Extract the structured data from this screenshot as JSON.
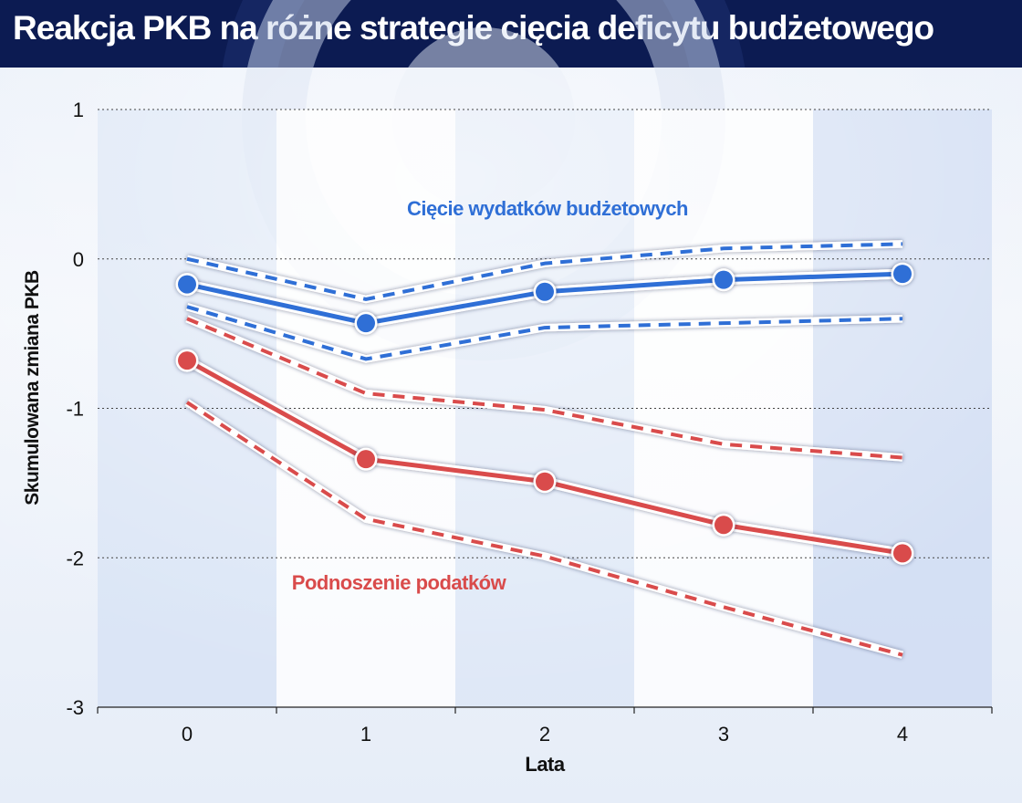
{
  "header": {
    "title": "Reakcja PKB na różne strategie cięcia deficytu budżetowego"
  },
  "chart_data": {
    "type": "line",
    "title": "Reakcja PKB na różne strategie cięcia deficytu budżetowego",
    "xlabel": "Lata",
    "ylabel": "Skumulowana zmiana PKB",
    "x": [
      0,
      1,
      2,
      3,
      4
    ],
    "x_tick_labels": [
      "0",
      "1",
      "2",
      "3",
      "4"
    ],
    "xlim": [
      -0.5,
      4.5
    ],
    "y_ticks": [
      1,
      0,
      -1,
      -2,
      -3
    ],
    "y_tick_labels": [
      "1",
      "0",
      "-1",
      "-2",
      "-3"
    ],
    "ylim": [
      -3,
      1
    ],
    "grid": "horizontal dotted",
    "series": [
      {
        "name": "Cięcie wydatków budżetowych",
        "group": "spending",
        "role": "central",
        "color": "#2f6fd6",
        "values": [
          -0.17,
          -0.43,
          -0.22,
          -0.14,
          -0.1
        ]
      },
      {
        "group": "spending",
        "role": "upper",
        "color": "#2f6fd6",
        "values": [
          0.0,
          -0.27,
          -0.03,
          0.07,
          0.1
        ]
      },
      {
        "group": "spending",
        "role": "lower",
        "color": "#2f6fd6",
        "values": [
          -0.32,
          -0.67,
          -0.46,
          -0.43,
          -0.4
        ]
      },
      {
        "name": "Podnoszenie podatków",
        "group": "taxes",
        "role": "central",
        "color": "#d94b4b",
        "values": [
          -0.68,
          -1.34,
          -1.49,
          -1.78,
          -1.97
        ]
      },
      {
        "group": "taxes",
        "role": "upper",
        "color": "#d94b4b",
        "values": [
          -0.4,
          -0.9,
          -1.01,
          -1.24,
          -1.33
        ]
      },
      {
        "group": "taxes",
        "role": "lower",
        "color": "#d94b4b",
        "values": [
          -0.96,
          -1.74,
          -1.99,
          -2.33,
          -2.65
        ]
      }
    ],
    "annotations": [
      {
        "text": "Cięcie wydatków budżetowych",
        "color": "#2f6fd6"
      },
      {
        "text": "Podnoszenie podatków",
        "color": "#d94b4b"
      }
    ]
  }
}
